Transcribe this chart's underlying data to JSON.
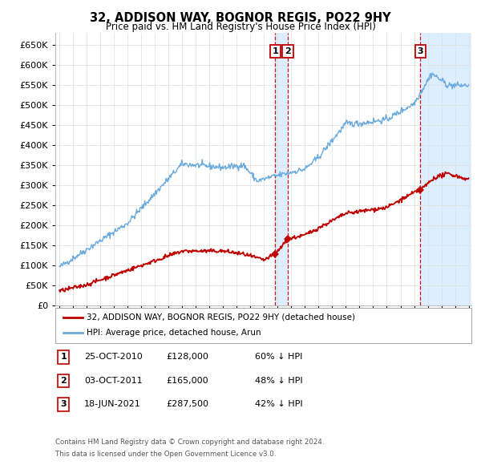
{
  "title": "32, ADDISON WAY, BOGNOR REGIS, PO22 9HY",
  "subtitle": "Price paid vs. HM Land Registry's House Price Index (HPI)",
  "ylim": [
    0,
    680000
  ],
  "yticks": [
    0,
    50000,
    100000,
    150000,
    200000,
    250000,
    300000,
    350000,
    400000,
    450000,
    500000,
    550000,
    600000,
    650000
  ],
  "hpi_color": "#6aaadd",
  "price_color": "#c00000",
  "shade_color": "#ddeeff",
  "legend_line1": "32, ADDISON WAY, BOGNOR REGIS, PO22 9HY (detached house)",
  "legend_line2": "HPI: Average price, detached house, Arun",
  "transactions": [
    {
      "num": 1,
      "date": "25-OCT-2010",
      "price": 128000,
      "pct": "60% ↓ HPI",
      "x": 2010.82
    },
    {
      "num": 2,
      "date": "03-OCT-2011",
      "price": 165000,
      "pct": "48% ↓ HPI",
      "x": 2011.75
    },
    {
      "num": 3,
      "date": "18-JUN-2021",
      "price": 287500,
      "pct": "42% ↓ HPI",
      "x": 2021.46
    }
  ],
  "footnote1": "Contains HM Land Registry data © Crown copyright and database right 2024.",
  "footnote2": "This data is licensed under the Open Government Licence v3.0.",
  "background_color": "#ffffff",
  "grid_color": "#dddddd",
  "xlim_start": 1995,
  "xlim_end": 2025
}
